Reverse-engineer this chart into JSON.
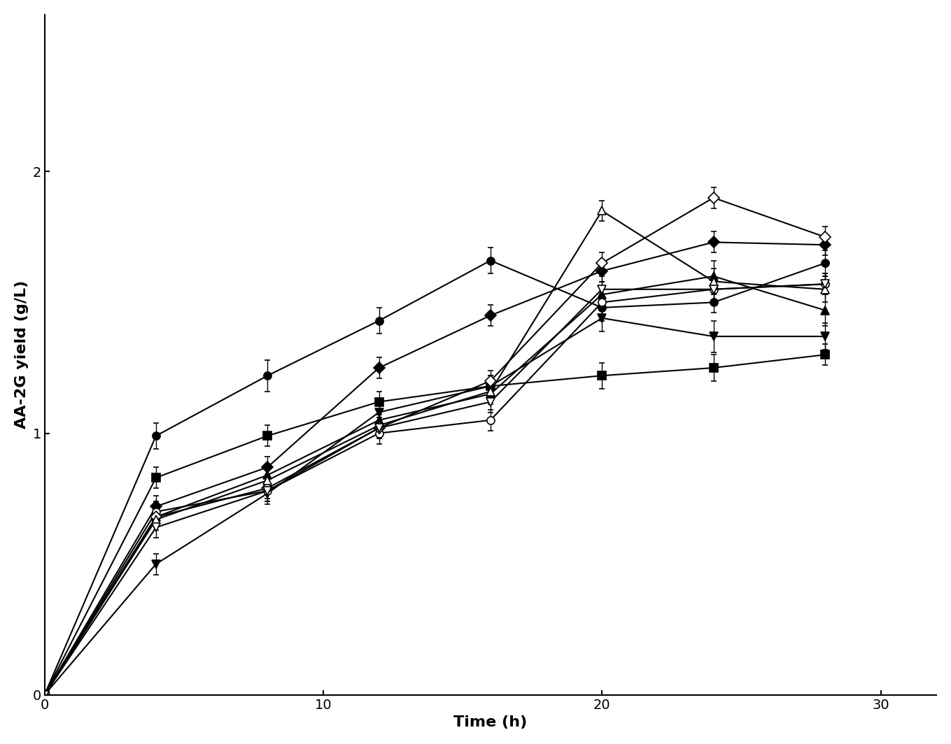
{
  "xlabel": "Time (h)",
  "ylabel": "AA-2G yield (g/L)",
  "xlim": [
    0,
    32
  ],
  "ylim": [
    0,
    2.6
  ],
  "xticks": [
    0,
    10,
    20,
    30
  ],
  "yticks": [
    0,
    1,
    2
  ],
  "series": [
    {
      "name": "filled_circle",
      "marker": "o",
      "filled": true,
      "x": [
        0,
        4,
        8,
        12,
        16,
        20,
        24,
        28
      ],
      "y": [
        0,
        0.99,
        1.22,
        1.43,
        1.66,
        1.48,
        1.5,
        1.65
      ],
      "yerr": [
        0,
        0.05,
        0.06,
        0.05,
        0.05,
        0.05,
        0.04,
        0.05
      ]
    },
    {
      "name": "filled_square",
      "marker": "s",
      "filled": true,
      "x": [
        0,
        4,
        8,
        12,
        16,
        20,
        24,
        28
      ],
      "y": [
        0,
        0.83,
        0.99,
        1.12,
        1.18,
        1.22,
        1.25,
        1.3
      ],
      "yerr": [
        0,
        0.04,
        0.04,
        0.04,
        0.04,
        0.05,
        0.05,
        0.04
      ]
    },
    {
      "name": "filled_diamond",
      "marker": "D",
      "filled": true,
      "x": [
        0,
        4,
        8,
        12,
        16,
        20,
        24,
        28
      ],
      "y": [
        0,
        0.72,
        0.87,
        1.25,
        1.45,
        1.62,
        1.73,
        1.72
      ],
      "yerr": [
        0,
        0.04,
        0.04,
        0.04,
        0.04,
        0.04,
        0.04,
        0.04
      ]
    },
    {
      "name": "filled_uptriangle",
      "marker": "^",
      "filled": true,
      "x": [
        0,
        4,
        8,
        12,
        16,
        20,
        24,
        28
      ],
      "y": [
        0,
        0.68,
        0.84,
        1.05,
        1.15,
        1.53,
        1.6,
        1.47
      ],
      "yerr": [
        0,
        0.04,
        0.04,
        0.04,
        0.04,
        0.05,
        0.06,
        0.06
      ]
    },
    {
      "name": "filled_downtriangle",
      "marker": "v",
      "filled": true,
      "x": [
        0,
        4,
        8,
        12,
        16,
        20,
        24,
        28
      ],
      "y": [
        0,
        0.5,
        0.77,
        1.08,
        1.18,
        1.44,
        1.37,
        1.37
      ],
      "yerr": [
        0,
        0.04,
        0.04,
        0.04,
        0.04,
        0.05,
        0.06,
        0.05
      ]
    },
    {
      "name": "open_circle",
      "marker": "o",
      "filled": false,
      "x": [
        0,
        4,
        8,
        12,
        16,
        20,
        24,
        28
      ],
      "y": [
        0,
        0.7,
        0.78,
        1.0,
        1.05,
        1.5,
        1.55,
        1.57
      ],
      "yerr": [
        0,
        0.04,
        0.04,
        0.04,
        0.04,
        0.05,
        0.05,
        0.04
      ]
    },
    {
      "name": "open_diamond",
      "marker": "D",
      "filled": false,
      "x": [
        0,
        4,
        8,
        12,
        16,
        20,
        24,
        28
      ],
      "y": [
        0,
        0.68,
        0.79,
        1.02,
        1.2,
        1.65,
        1.9,
        1.75
      ],
      "yerr": [
        0,
        0.04,
        0.04,
        0.04,
        0.04,
        0.04,
        0.04,
        0.04
      ]
    },
    {
      "name": "open_uptriangle",
      "marker": "^",
      "filled": false,
      "x": [
        0,
        4,
        8,
        12,
        16,
        20,
        24,
        28
      ],
      "y": [
        0,
        0.67,
        0.82,
        1.03,
        1.16,
        1.85,
        1.58,
        1.55
      ],
      "yerr": [
        0,
        0.04,
        0.04,
        0.04,
        0.04,
        0.04,
        0.05,
        0.05
      ]
    },
    {
      "name": "open_downtriangle",
      "marker": "v",
      "filled": false,
      "x": [
        0,
        4,
        8,
        12,
        16,
        20,
        24,
        28
      ],
      "y": [
        0,
        0.64,
        0.78,
        1.02,
        1.12,
        1.55,
        1.55,
        1.57
      ],
      "yerr": [
        0,
        0.04,
        0.04,
        0.04,
        0.04,
        0.05,
        0.05,
        0.04
      ]
    }
  ],
  "background_color": "#ffffff",
  "line_color": "black",
  "markersize": 8,
  "linewidth": 1.5,
  "label_fontsize": 16,
  "tick_fontsize": 14,
  "capsize": 3
}
